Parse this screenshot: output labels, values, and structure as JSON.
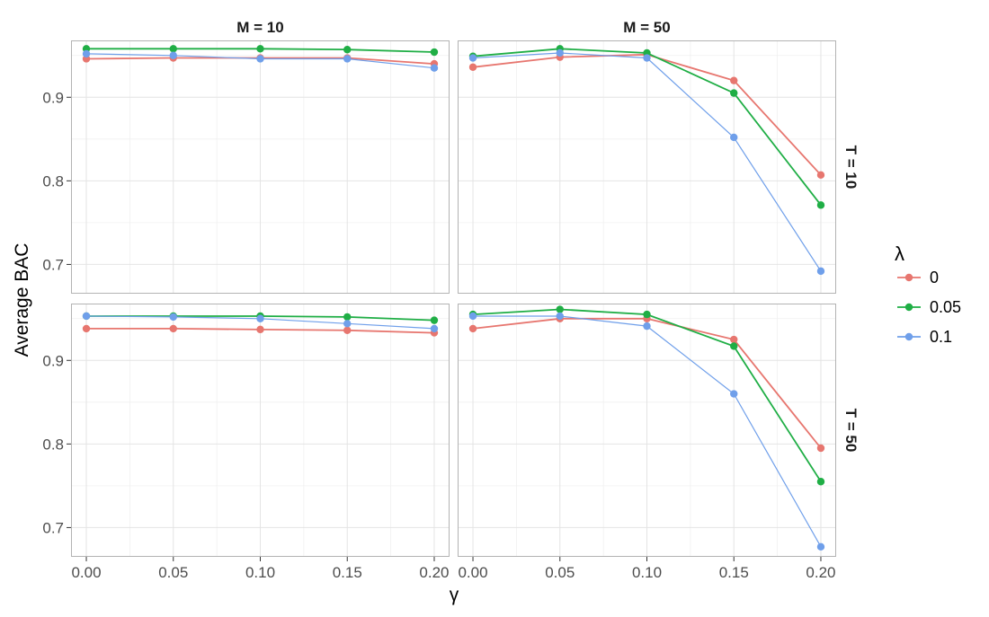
{
  "chart_data": {
    "type": "line",
    "xlabel": "γ",
    "ylabel": "Average BAC",
    "x": [
      0.0,
      0.05,
      0.1,
      0.15,
      0.2
    ],
    "x_tick_labels": [
      "0.00",
      "0.05",
      "0.10",
      "0.15",
      "0.20"
    ],
    "y_ticks": [
      0.7,
      0.8,
      0.9
    ],
    "y_tick_labels": [
      "0.7",
      "0.8",
      "0.9"
    ],
    "ylim": [
      0.665,
      0.968
    ],
    "xlim": [
      -0.0088,
      0.2088
    ],
    "grid": true,
    "facet_cols": [
      "M = 10",
      "M = 50"
    ],
    "facet_rows": [
      "T = 10",
      "T = 50"
    ],
    "legend": {
      "title": "λ",
      "placement": "right",
      "entries": [
        "0",
        "0.05",
        "0.1"
      ]
    },
    "series_colors": [
      "#E7766F",
      "#1FAE45",
      "#6F9FEA"
    ],
    "panels": [
      {
        "col": "M = 10",
        "row": "T = 10",
        "series": [
          {
            "name": "0",
            "values": [
              0.946,
              0.947,
              0.947,
              0.947,
              0.94
            ]
          },
          {
            "name": "0.05",
            "values": [
              0.958,
              0.958,
              0.958,
              0.957,
              0.954
            ]
          },
          {
            "name": "0.1",
            "values": [
              0.952,
              0.95,
              0.946,
              0.946,
              0.935
            ]
          }
        ]
      },
      {
        "col": "M = 50",
        "row": "T = 10",
        "series": [
          {
            "name": "0",
            "values": [
              0.936,
              0.948,
              0.951,
              0.92,
              0.807
            ]
          },
          {
            "name": "0.05",
            "values": [
              0.949,
              0.958,
              0.953,
              0.905,
              0.771
            ]
          },
          {
            "name": "0.1",
            "values": [
              0.947,
              0.953,
              0.947,
              0.852,
              0.692
            ]
          }
        ]
      },
      {
        "col": "M = 10",
        "row": "T = 50",
        "series": [
          {
            "name": "0",
            "values": [
              0.938,
              0.938,
              0.937,
              0.936,
              0.933
            ]
          },
          {
            "name": "0.05",
            "values": [
              0.953,
              0.953,
              0.953,
              0.952,
              0.948
            ]
          },
          {
            "name": "0.1",
            "values": [
              0.953,
              0.952,
              0.95,
              0.944,
              0.938
            ]
          }
        ]
      },
      {
        "col": "M = 50",
        "row": "T = 50",
        "series": [
          {
            "name": "0",
            "values": [
              0.938,
              0.95,
              0.95,
              0.925,
              0.795
            ]
          },
          {
            "name": "0.05",
            "values": [
              0.955,
              0.961,
              0.955,
              0.917,
              0.755
            ]
          },
          {
            "name": "0.1",
            "values": [
              0.953,
              0.953,
              0.941,
              0.86,
              0.677
            ]
          }
        ]
      }
    ]
  }
}
